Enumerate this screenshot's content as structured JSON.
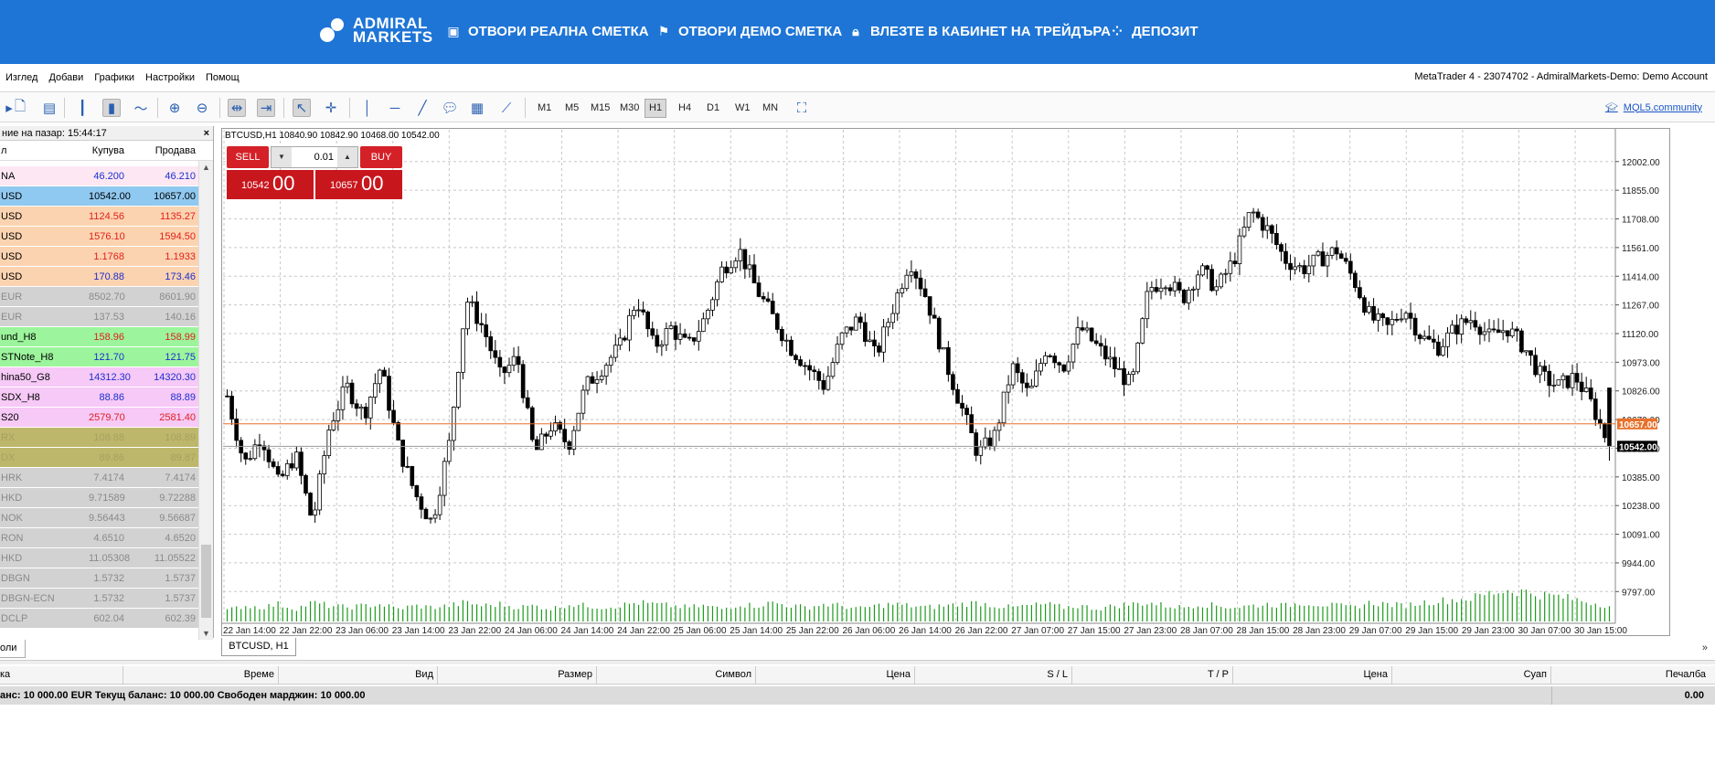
{
  "banner": {
    "logo_line1": "ADMIRAL",
    "logo_line2": "MARKETS",
    "nav": [
      {
        "label": "ОТВОРИ РЕАЛНА СМЕТКА",
        "icon": "chart-square-icon"
      },
      {
        "label": "ОТВОРИ ДЕМО СМЕТКА",
        "icon": "flag-icon"
      },
      {
        "label": "ВЛЕЗТЕ В КАБИНЕТ НА ТРЕЙДЪРА",
        "icon": "lock-icon"
      },
      {
        "label": "ДЕПОЗИТ",
        "icon": "coins-icon"
      }
    ]
  },
  "menu": {
    "items": [
      "Изглед",
      "Добави",
      "Графики",
      "Настройки",
      "Помощ"
    ],
    "window_title": "MetaTrader 4 - 23074702 - AdmiralMarkets-Demo: Demo Account"
  },
  "toolbar": {
    "timeframes": [
      "M1",
      "M5",
      "M15",
      "M30",
      "H1",
      "H4",
      "D1",
      "W1",
      "MN"
    ],
    "active_timeframe": "H1",
    "mql_link": "MQL5.community"
  },
  "market_watch": {
    "title": "ние на пазар: 15:44:17",
    "col_symbol": "л",
    "col_bid": "Купува",
    "col_ask": "Продава",
    "rows": [
      {
        "symbol": "NA",
        "bid": "46.200",
        "ask": "46.210",
        "bg": "#fde7f3",
        "color": "#1a2fcf"
      },
      {
        "symbol": "USD",
        "bid": "10542.00",
        "ask": "10657.00",
        "bg": "#8fc8f0",
        "color": "#000000"
      },
      {
        "symbol": "USD",
        "bid": "1124.56",
        "ask": "1135.27",
        "bg": "#fcd3b0",
        "color": "#e0201c"
      },
      {
        "symbol": "USD",
        "bid": "1576.10",
        "ask": "1594.50",
        "bg": "#fcd3b0",
        "color": "#e0201c"
      },
      {
        "symbol": "USD",
        "bid": "1.1768",
        "ask": "1.1933",
        "bg": "#fcd3b0",
        "color": "#e0201c"
      },
      {
        "symbol": "USD",
        "bid": "170.88",
        "ask": "173.46",
        "bg": "#fcd3b0",
        "color": "#1a2fcf"
      },
      {
        "symbol": "EUR",
        "bid": "8502.70",
        "ask": "8601.90",
        "bg": "#d2d2d2",
        "color": "#8a8a8a"
      },
      {
        "symbol": "EUR",
        "bid": "137.53",
        "ask": "140.16",
        "bg": "#d2d2d2",
        "color": "#8a8a8a"
      },
      {
        "symbol": "und_H8",
        "bid": "158.96",
        "ask": "158.99",
        "bg": "#9cf59c",
        "color": "#e0201c"
      },
      {
        "symbol": "STNote_H8",
        "bid": "121.70",
        "ask": "121.75",
        "bg": "#9cf59c",
        "color": "#1a2fcf"
      },
      {
        "symbol": "hina50_G8",
        "bid": "14312.30",
        "ask": "14320.30",
        "bg": "#f6c9f6",
        "color": "#1a2fcf"
      },
      {
        "symbol": "SDX_H8",
        "bid": "88.86",
        "ask": "88.89",
        "bg": "#f6c9f6",
        "color": "#1a2fcf"
      },
      {
        "symbol": "S20",
        "bid": "2579.70",
        "ask": "2581.40",
        "bg": "#f6c9f6",
        "color": "#e0201c"
      },
      {
        "symbol": "RX",
        "bid": "108.88",
        "ask": "108.89",
        "bg": "#bdb76b",
        "color": "#a8a060"
      },
      {
        "symbol": "DX",
        "bid": "89.86",
        "ask": "89.87",
        "bg": "#bdb76b",
        "color": "#a8a060"
      },
      {
        "symbol": "HRK",
        "bid": "7.4174",
        "ask": "7.4174",
        "bg": "#d2d2d2",
        "color": "#8a8a8a"
      },
      {
        "symbol": "HKD",
        "bid": "9.71589",
        "ask": "9.72288",
        "bg": "#d2d2d2",
        "color": "#8a8a8a"
      },
      {
        "symbol": "NOK",
        "bid": "9.56443",
        "ask": "9.56687",
        "bg": "#d2d2d2",
        "color": "#8a8a8a"
      },
      {
        "symbol": "RON",
        "bid": "4.6510",
        "ask": "4.6520",
        "bg": "#d2d2d2",
        "color": "#8a8a8a"
      },
      {
        "symbol": "HKD",
        "bid": "11.05308",
        "ask": "11.05522",
        "bg": "#d2d2d2",
        "color": "#8a8a8a"
      },
      {
        "symbol": "DBGN",
        "bid": "1.5732",
        "ask": "1.5737",
        "bg": "#d2d2d2",
        "color": "#8a8a8a"
      },
      {
        "symbol": "DBGN-ECN",
        "bid": "1.5732",
        "ask": "1.5737",
        "bg": "#d2d2d2",
        "color": "#8a8a8a"
      },
      {
        "symbol": "DCLP",
        "bid": "602.04",
        "ask": "602.39",
        "bg": "#d2d2d2",
        "color": "#8a8a8a"
      }
    ]
  },
  "chart": {
    "info": "BTCUSD,H1  10840.90 10842.90 10468.00 10542.00",
    "tab_label": "BTCUSD, H1",
    "trade_panel": {
      "sell_label": "SELL",
      "buy_label": "BUY",
      "lot": "0.01",
      "sell_small": "10542",
      "sell_big": "00",
      "buy_small": "10657",
      "buy_big": "00"
    },
    "ask_line_label": "10657.00",
    "bid_line_label": "10542.00",
    "ask_color": "#e8702a",
    "bid_color": "#888888"
  },
  "chart_data": {
    "type": "candlestick",
    "symbol": "BTCUSD",
    "timeframe": "H1",
    "y_ticks": [
      12002.0,
      11855.0,
      11708.0,
      11561.0,
      11414.0,
      11267.0,
      11120.0,
      10973.0,
      10826.0,
      10679.0,
      10532.0,
      10385.0,
      10238.0,
      10091.0,
      9944.0,
      9797.0
    ],
    "y_tick_labels": [
      "12002.00",
      "11855.00",
      "11708.00",
      "11561.00",
      "11414.00",
      "11267.00",
      "11120.00",
      "10973.00",
      "10826.00",
      "10679.00",
      "10532.00",
      "10385.00",
      "10238.00",
      "10091.00",
      "9944.00",
      "9797.00"
    ],
    "ylim": [
      9700,
      12090
    ],
    "x_tick_labels": [
      "22 Jan 14:00",
      "22 Jan 22:00",
      "23 Jan 06:00",
      "23 Jan 14:00",
      "23 Jan 22:00",
      "24 Jan 06:00",
      "24 Jan 14:00",
      "24 Jan 22:00",
      "25 Jan 06:00",
      "25 Jan 14:00",
      "25 Jan 22:00",
      "26 Jan 06:00",
      "26 Jan 14:00",
      "26 Jan 22:00",
      "27 Jan 07:00",
      "27 Jan 15:00",
      "27 Jan 23:00",
      "28 Jan 07:00",
      "28 Jan 15:00",
      "28 Jan 23:00",
      "29 Jan 07:00",
      "29 Jan 15:00",
      "29 Jan 23:00",
      "30 Jan 07:00",
      "30 Jan 15:00"
    ],
    "close_path": [
      10800,
      10450,
      10600,
      10350,
      10500,
      10150,
      10650,
      10850,
      10700,
      10950,
      10550,
      10300,
      10150,
      10550,
      11300,
      11150,
      10900,
      11000,
      10500,
      10650,
      10550,
      10850,
      10950,
      11050,
      11300,
      11050,
      11150,
      11050,
      11200,
      11450,
      11550,
      11350,
      11200,
      11050,
      10950,
      10850,
      11100,
      11200,
      11000,
      11250,
      11500,
      11300,
      11000,
      10750,
      10500,
      10600,
      10950,
      10800,
      11050,
      10950,
      11150,
      11050,
      10950,
      10850,
      11350,
      11400,
      11300,
      11450,
      11350,
      11500,
      11750,
      11650,
      11500,
      11450,
      11500,
      11550,
      11400,
      11200,
      11150,
      11250,
      11100,
      11050,
      11150,
      11200,
      11100,
      11150,
      11050,
      10900,
      10850,
      10900,
      10750,
      10542
    ],
    "volume_path": [
      0.35,
      0.5,
      0.45,
      0.55,
      0.4,
      0.6,
      0.5,
      0.45,
      0.5,
      0.55,
      0.4,
      0.5,
      0.45,
      0.5,
      0.6,
      0.5,
      0.55,
      0.45,
      0.5,
      0.4,
      0.55,
      0.5,
      0.45,
      0.5,
      0.6,
      0.55,
      0.5,
      0.45,
      0.5,
      0.4,
      0.55,
      0.5,
      0.6,
      0.5,
      0.45,
      0.55,
      0.5,
      0.4,
      0.5,
      0.55,
      0.5,
      0.45,
      0.5,
      0.55,
      0.6,
      0.5,
      0.45,
      0.5,
      0.55,
      0.45,
      0.5,
      0.4,
      0.5,
      0.55,
      0.6,
      0.5,
      0.45,
      0.55,
      0.5,
      0.45,
      0.5,
      0.55,
      0.5,
      0.6,
      0.55,
      0.5,
      0.45,
      0.6,
      0.55,
      0.5,
      0.6,
      0.65,
      0.7,
      0.75,
      0.9,
      1.0,
      0.95,
      0.85,
      0.8,
      0.7,
      0.6,
      0.5
    ],
    "ask_price": 10657.0,
    "bid_price": 10542.0,
    "grid": true
  },
  "terminal": {
    "tab_label": "оли",
    "collapse_glyph": "»",
    "columns": [
      {
        "label": "ка",
        "align": "left"
      },
      {
        "label": "Време",
        "align": "right"
      },
      {
        "label": "Вид",
        "align": "right"
      },
      {
        "label": "Размер",
        "align": "right"
      },
      {
        "label": "Символ",
        "align": "right"
      },
      {
        "label": "Цена",
        "align": "right"
      },
      {
        "label": "S / L",
        "align": "right"
      },
      {
        "label": "T / P",
        "align": "right"
      },
      {
        "label": "Цена",
        "align": "right"
      },
      {
        "label": "Суап",
        "align": "right"
      },
      {
        "label": "Печалба",
        "align": "right"
      }
    ],
    "balance_line": "анс: 10 000.00 EUR  Текущ баланс: 10 000.00  Свободен марджин: 10 000.00",
    "profit_total": "0.00"
  }
}
